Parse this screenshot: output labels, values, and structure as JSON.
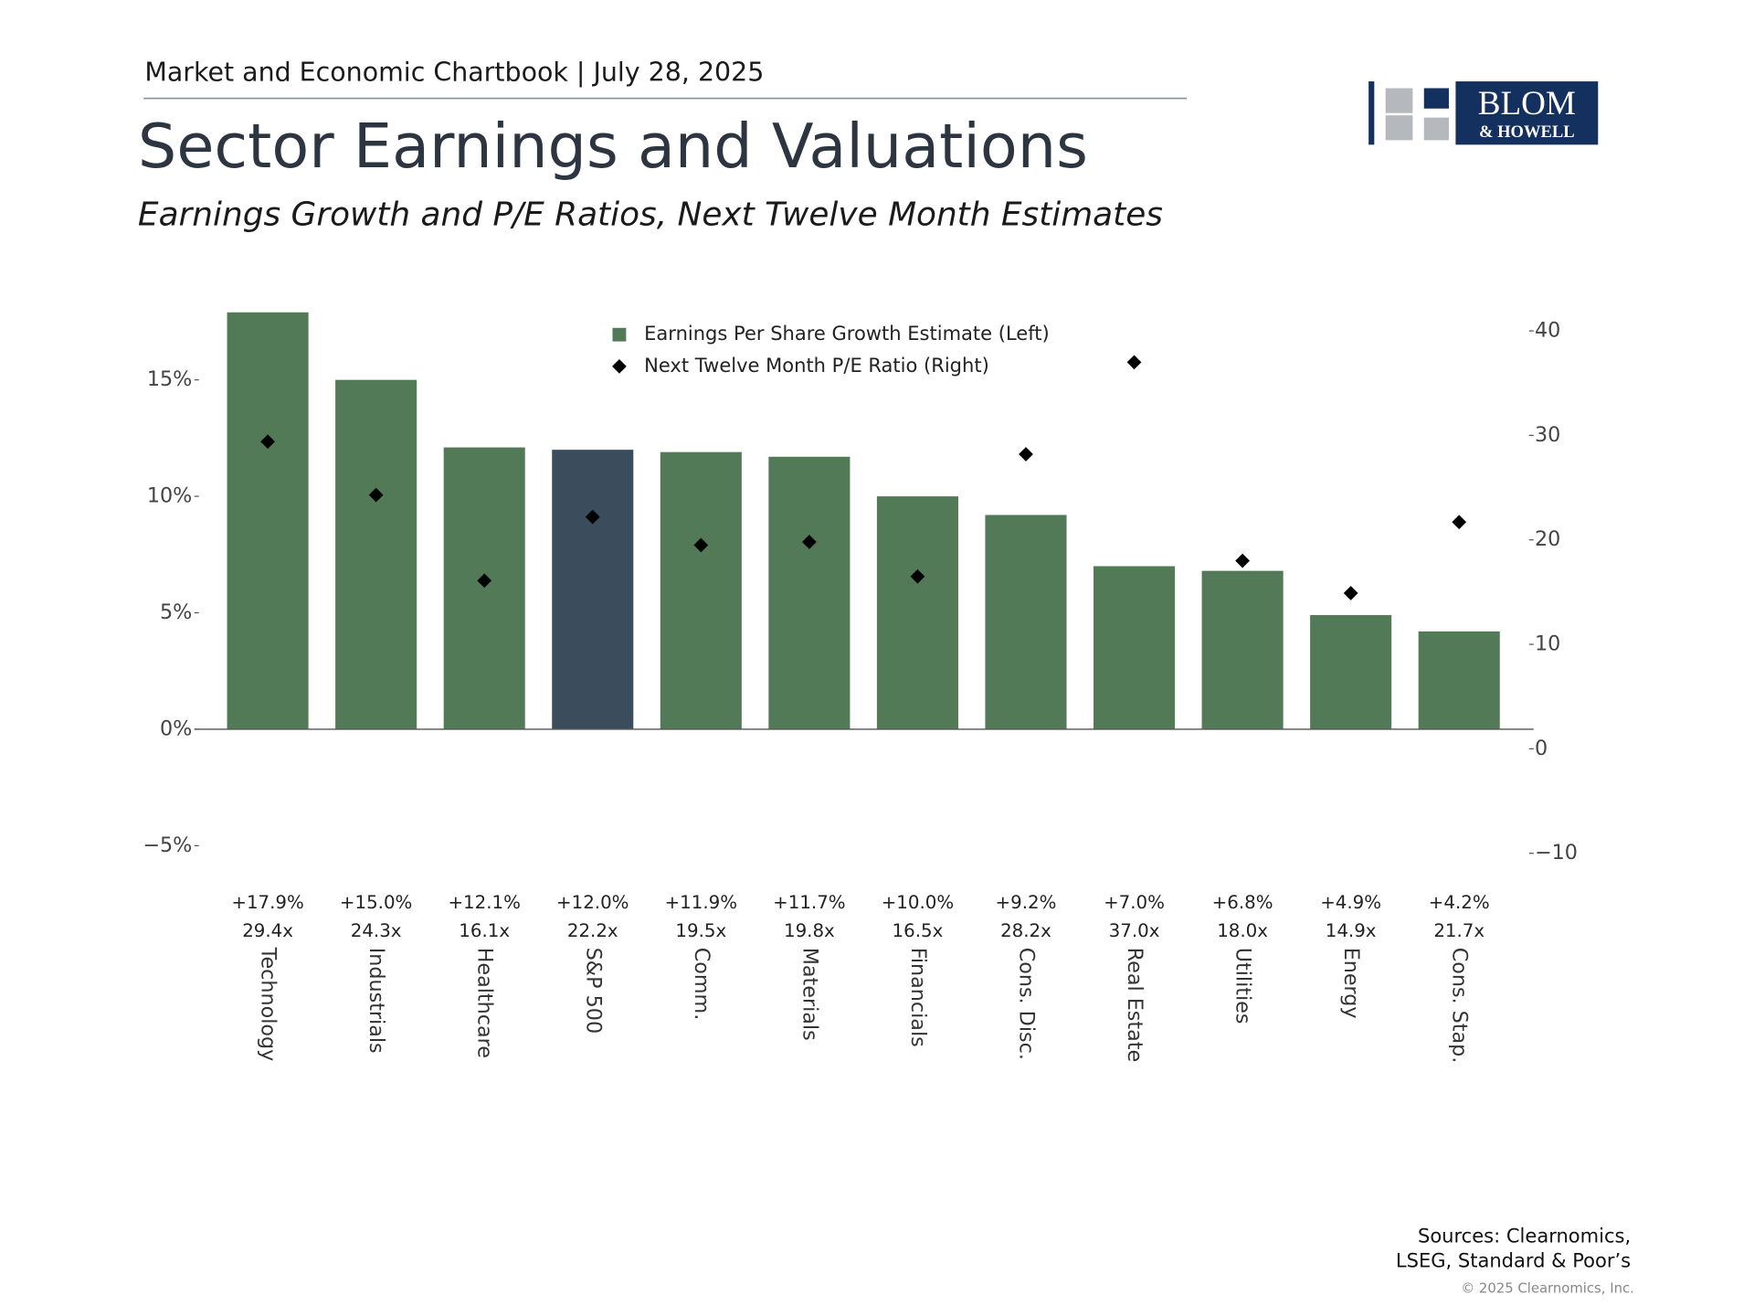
{
  "header": {
    "chartbook": "Market and Economic Chartbook | July 28, 2025",
    "title": "Sector Earnings and Valuations",
    "subtitle": "Earnings Growth and P/E Ratios, Next Twelve Month Estimates"
  },
  "logo": {
    "name": "BLOM",
    "tagline": "& HOWELL"
  },
  "chart_data": {
    "type": "bar",
    "categories": [
      "Technology",
      "Industrials",
      "Healthcare",
      "S&P 500",
      "Comm.",
      "Materials",
      "Financials",
      "Cons. Disc.",
      "Real Estate",
      "Utilities",
      "Energy",
      "Cons. Stap."
    ],
    "series": [
      {
        "name": "Earnings Per Share Growth Estimate (Left)",
        "type": "bar",
        "color": "#527a56",
        "colors": [
          "#527a56",
          "#527a56",
          "#527a56",
          "#3b4d5c",
          "#527a56",
          "#527a56",
          "#527a56",
          "#527a56",
          "#527a56",
          "#527a56",
          "#527a56",
          "#527a56"
        ],
        "values": [
          17.9,
          15.0,
          12.1,
          12.0,
          11.9,
          11.7,
          10.0,
          9.2,
          7.0,
          6.8,
          4.9,
          4.2
        ],
        "value_labels": [
          "+17.9%",
          "+15.0%",
          "+12.1%",
          "+12.0%",
          "+11.9%",
          "+11.7%",
          "+10.0%",
          "+9.2%",
          "+7.0%",
          "+6.8%",
          "+4.9%",
          "+4.2%"
        ]
      },
      {
        "name": "Next Twelve Month P/E Ratio (Right)",
        "type": "scatter",
        "axis": "y2",
        "color": "#000000",
        "values": [
          29.4,
          24.3,
          16.1,
          22.2,
          19.5,
          19.8,
          16.5,
          28.2,
          37.0,
          18.0,
          14.9,
          21.7
        ],
        "value_labels": [
          "29.4x",
          "24.3x",
          "16.1x",
          "22.2x",
          "19.5x",
          "19.8x",
          "16.5x",
          "28.2x",
          "37.0x",
          "18.0x",
          "14.9x",
          "21.7x"
        ]
      }
    ],
    "ylim": [
      -6,
      18
    ],
    "yticks": [
      {
        "value": -5,
        "label": "−5%"
      },
      {
        "value": 0,
        "label": "0%"
      },
      {
        "value": 5,
        "label": "5%"
      },
      {
        "value": 10,
        "label": "10%"
      },
      {
        "value": 15,
        "label": "15%"
      }
    ],
    "y2lim": [
      -11.5,
      42
    ],
    "y2ticks": [
      {
        "value": -10,
        "label": "−10"
      },
      0,
      10,
      20,
      30,
      40
    ],
    "legend": "top-center"
  },
  "footer": {
    "sources": [
      "Sources: Clearnomics,",
      "LSEG, Standard & Poor’s"
    ],
    "copyright": "© 2025 Clearnomics, Inc."
  }
}
